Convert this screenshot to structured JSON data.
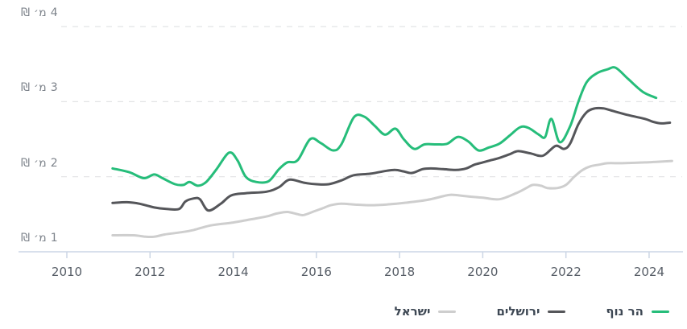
{
  "chart_data": {
    "type": "line",
    "title": "",
    "x_axis": {
      "ticks": [
        {
          "value": 2010,
          "label": "2010"
        },
        {
          "value": 2012,
          "label": "2012"
        },
        {
          "value": 2014,
          "label": "2014"
        },
        {
          "value": 2016,
          "label": "2016"
        },
        {
          "value": 2018,
          "label": "2018"
        },
        {
          "value": 2020,
          "label": "2020"
        },
        {
          "value": 2022,
          "label": "2022"
        },
        {
          "value": 2024,
          "label": "2024"
        }
      ],
      "range": [
        2009.85,
        2024.8
      ]
    },
    "y_axis": {
      "unit": "₪ millions",
      "ticks": [
        {
          "value": 4,
          "label": "4 מ׳ ₪"
        },
        {
          "value": 3,
          "label": "3 מ׳ ₪"
        },
        {
          "value": 2,
          "label": "2 מ׳ ₪"
        },
        {
          "value": 1,
          "label": "1 מ׳ ₪"
        }
      ],
      "baseline_value": 1,
      "range": [
        1,
        4
      ],
      "grid": "dashed"
    },
    "legend_position": "bottom-right",
    "colors": {
      "grid": "#e2e3e5",
      "axis": "#ccd6e5",
      "tick": "#ccd6e5"
    },
    "series": [
      {
        "id": "har-nof",
        "name": "הר נוף",
        "color": "#26bd7a",
        "points": [
          [
            2011.1,
            2.11
          ],
          [
            2011.5,
            2.06
          ],
          [
            2011.85,
            1.98
          ],
          [
            2012.1,
            2.03
          ],
          [
            2012.3,
            1.98
          ],
          [
            2012.6,
            1.9
          ],
          [
            2012.8,
            1.89
          ],
          [
            2012.95,
            1.93
          ],
          [
            2013.15,
            1.88
          ],
          [
            2013.35,
            1.93
          ],
          [
            2013.6,
            2.1
          ],
          [
            2013.9,
            2.32
          ],
          [
            2014.1,
            2.22
          ],
          [
            2014.3,
            2.0
          ],
          [
            2014.55,
            1.93
          ],
          [
            2014.85,
            1.94
          ],
          [
            2015.1,
            2.1
          ],
          [
            2015.3,
            2.19
          ],
          [
            2015.55,
            2.22
          ],
          [
            2015.85,
            2.5
          ],
          [
            2016.1,
            2.45
          ],
          [
            2016.4,
            2.35
          ],
          [
            2016.6,
            2.43
          ],
          [
            2016.9,
            2.79
          ],
          [
            2017.15,
            2.8
          ],
          [
            2017.4,
            2.68
          ],
          [
            2017.65,
            2.56
          ],
          [
            2017.9,
            2.64
          ],
          [
            2018.1,
            2.5
          ],
          [
            2018.35,
            2.37
          ],
          [
            2018.6,
            2.43
          ],
          [
            2018.9,
            2.43
          ],
          [
            2019.15,
            2.44
          ],
          [
            2019.4,
            2.53
          ],
          [
            2019.65,
            2.47
          ],
          [
            2019.9,
            2.35
          ],
          [
            2020.15,
            2.39
          ],
          [
            2020.4,
            2.44
          ],
          [
            2020.65,
            2.55
          ],
          [
            2020.9,
            2.66
          ],
          [
            2021.1,
            2.65
          ],
          [
            2021.35,
            2.56
          ],
          [
            2021.5,
            2.53
          ],
          [
            2021.65,
            2.77
          ],
          [
            2021.85,
            2.46
          ],
          [
            2022.1,
            2.67
          ],
          [
            2022.3,
            3.0
          ],
          [
            2022.5,
            3.26
          ],
          [
            2022.75,
            3.38
          ],
          [
            2023.0,
            3.43
          ],
          [
            2023.2,
            3.45
          ],
          [
            2023.5,
            3.3
          ],
          [
            2023.85,
            3.13
          ],
          [
            2024.17,
            3.05
          ]
        ]
      },
      {
        "id": "jerusalem",
        "name": "ירושלים",
        "color": "#55565a",
        "points": [
          [
            2011.1,
            1.65
          ],
          [
            2011.45,
            1.66
          ],
          [
            2011.75,
            1.64
          ],
          [
            2012.1,
            1.59
          ],
          [
            2012.4,
            1.57
          ],
          [
            2012.7,
            1.57
          ],
          [
            2012.85,
            1.67
          ],
          [
            2013.05,
            1.71
          ],
          [
            2013.2,
            1.7
          ],
          [
            2013.4,
            1.55
          ],
          [
            2013.7,
            1.64
          ],
          [
            2013.95,
            1.75
          ],
          [
            2014.3,
            1.78
          ],
          [
            2014.8,
            1.8
          ],
          [
            2015.1,
            1.86
          ],
          [
            2015.35,
            1.96
          ],
          [
            2015.7,
            1.92
          ],
          [
            2016.0,
            1.9
          ],
          [
            2016.3,
            1.9
          ],
          [
            2016.6,
            1.95
          ],
          [
            2016.9,
            2.02
          ],
          [
            2017.3,
            2.04
          ],
          [
            2017.7,
            2.08
          ],
          [
            2017.9,
            2.09
          ],
          [
            2018.1,
            2.07
          ],
          [
            2018.3,
            2.05
          ],
          [
            2018.55,
            2.1
          ],
          [
            2018.75,
            2.11
          ],
          [
            2019.05,
            2.1
          ],
          [
            2019.35,
            2.09
          ],
          [
            2019.6,
            2.11
          ],
          [
            2019.8,
            2.16
          ],
          [
            2020.0,
            2.19
          ],
          [
            2020.2,
            2.22
          ],
          [
            2020.4,
            2.25
          ],
          [
            2020.65,
            2.3
          ],
          [
            2020.85,
            2.34
          ],
          [
            2021.15,
            2.31
          ],
          [
            2021.45,
            2.28
          ],
          [
            2021.75,
            2.41
          ],
          [
            2021.95,
            2.37
          ],
          [
            2022.1,
            2.44
          ],
          [
            2022.3,
            2.7
          ],
          [
            2022.5,
            2.86
          ],
          [
            2022.7,
            2.91
          ],
          [
            2022.9,
            2.91
          ],
          [
            2023.1,
            2.88
          ],
          [
            2023.5,
            2.82
          ],
          [
            2023.9,
            2.77
          ],
          [
            2024.1,
            2.73
          ],
          [
            2024.3,
            2.71
          ],
          [
            2024.5,
            2.72
          ]
        ]
      },
      {
        "id": "israel",
        "name": "ישראל",
        "color": "#cecece",
        "points": [
          [
            2011.1,
            1.22
          ],
          [
            2011.6,
            1.22
          ],
          [
            2011.9,
            1.2
          ],
          [
            2012.1,
            1.2
          ],
          [
            2012.35,
            1.23
          ],
          [
            2012.75,
            1.26
          ],
          [
            2013.05,
            1.29
          ],
          [
            2013.45,
            1.35
          ],
          [
            2014.0,
            1.39
          ],
          [
            2014.4,
            1.43
          ],
          [
            2014.8,
            1.47
          ],
          [
            2015.05,
            1.51
          ],
          [
            2015.3,
            1.53
          ],
          [
            2015.55,
            1.5
          ],
          [
            2015.7,
            1.49
          ],
          [
            2015.95,
            1.54
          ],
          [
            2016.15,
            1.58
          ],
          [
            2016.35,
            1.62
          ],
          [
            2016.6,
            1.64
          ],
          [
            2016.9,
            1.63
          ],
          [
            2017.3,
            1.62
          ],
          [
            2017.7,
            1.63
          ],
          [
            2018.1,
            1.65
          ],
          [
            2018.65,
            1.69
          ],
          [
            2019.05,
            1.74
          ],
          [
            2019.25,
            1.76
          ],
          [
            2019.6,
            1.74
          ],
          [
            2020.0,
            1.72
          ],
          [
            2020.4,
            1.7
          ],
          [
            2020.8,
            1.78
          ],
          [
            2021.05,
            1.85
          ],
          [
            2021.2,
            1.89
          ],
          [
            2021.4,
            1.88
          ],
          [
            2021.55,
            1.85
          ],
          [
            2021.8,
            1.85
          ],
          [
            2022.0,
            1.89
          ],
          [
            2022.2,
            2.0
          ],
          [
            2022.4,
            2.09
          ],
          [
            2022.6,
            2.14
          ],
          [
            2022.8,
            2.16
          ],
          [
            2023.0,
            2.18
          ],
          [
            2023.35,
            2.18
          ],
          [
            2023.9,
            2.19
          ],
          [
            2024.55,
            2.21
          ]
        ]
      }
    ]
  }
}
